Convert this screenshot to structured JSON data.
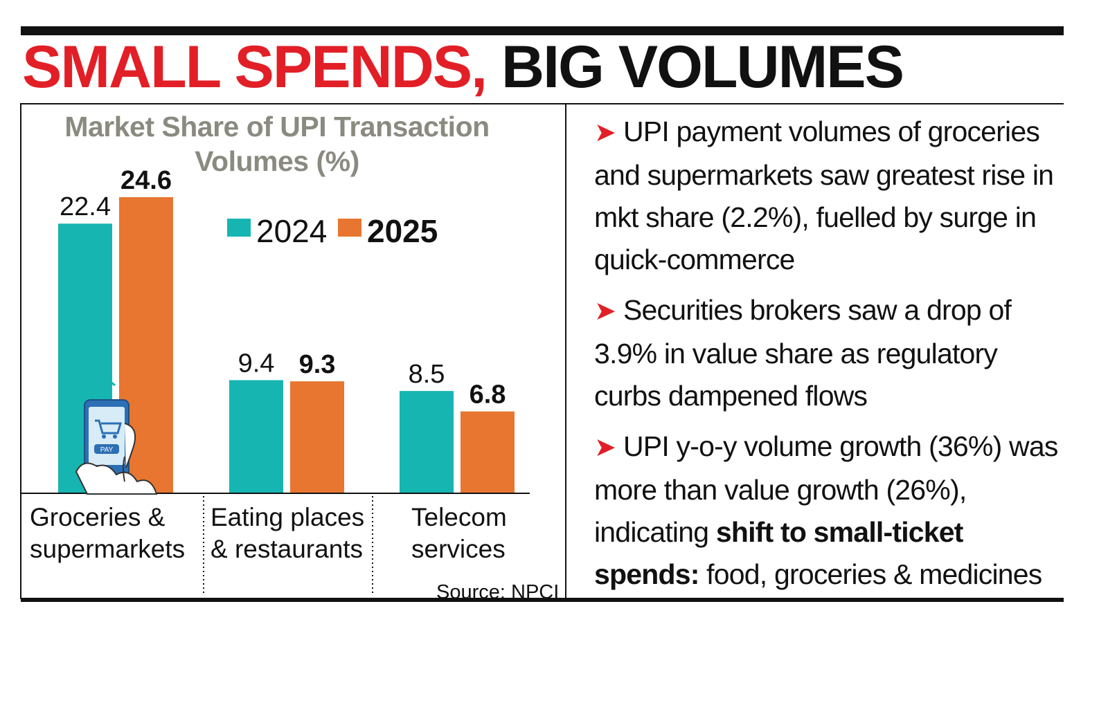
{
  "headline": {
    "part1": "SMALL SPENDS,",
    "part2": " BIG VOLUMES"
  },
  "chart_data": {
    "type": "bar",
    "title_line1": "Market Share of UPI Transaction",
    "title_line2": "Volumes (%)",
    "categories": [
      "Groceries & supermarkets",
      "Eating places & restaurants",
      "Telecom services"
    ],
    "category_lines": [
      [
        "Groceries &",
        "supermarkets"
      ],
      [
        "Eating places",
        "& restaurants"
      ],
      [
        "Telecom",
        "services"
      ]
    ],
    "series": [
      {
        "name": "2024",
        "values": [
          22.4,
          9.4,
          8.5
        ],
        "color": "#17b5b1"
      },
      {
        "name": "2025",
        "values": [
          24.6,
          9.3,
          6.8
        ],
        "color": "#e87630"
      }
    ],
    "value_labels": [
      [
        "22.4",
        "9.4",
        "8.5"
      ],
      [
        "24.6",
        "9.3",
        "6.8"
      ]
    ],
    "ylim": [
      0,
      25
    ],
    "legend": "top-center",
    "grid": false,
    "source": "Source: NPCI"
  },
  "bullets": [
    {
      "segments": [
        {
          "text": "UPI payment volumes of groceries and supermarkets saw greatest rise in mkt share (2.2%), fuelled by surge in quick-commerce",
          "bold": false
        }
      ]
    },
    {
      "segments": [
        {
          "text": "Securities brokers saw a drop of 3.9% in value share as regulatory curbs dampened flows",
          "bold": false
        }
      ]
    },
    {
      "segments": [
        {
          "text": "UPI y-o-y volume growth (36%) was more than value growth (26%), indicating ",
          "bold": false
        },
        {
          "text": "shift to small-ticket spends:",
          "bold": true
        },
        {
          "text": " food, groceries & medicines",
          "bold": false
        }
      ]
    }
  ],
  "icons": {
    "bullet_arrow": "arrow-right-icon",
    "phone": "phone-pay-icon"
  }
}
